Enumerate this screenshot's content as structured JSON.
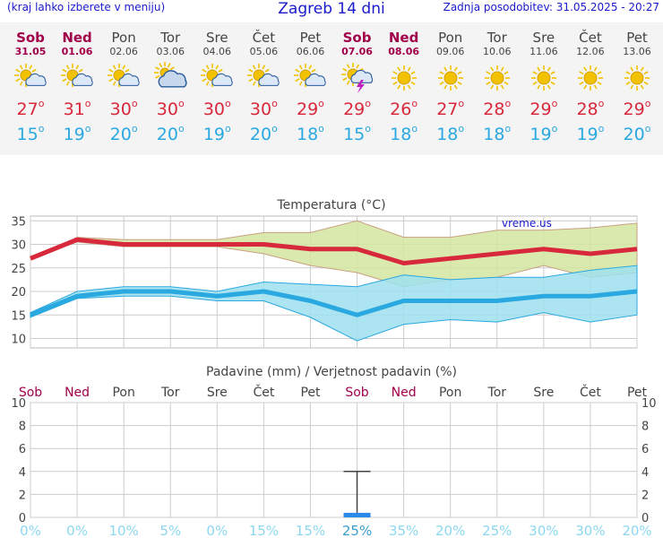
{
  "header": {
    "left_note": "(kraj lahko izberete v meniju)",
    "title": "Zagreb 14 dni",
    "updated": "Zadnja posodobitev: 31.05.2025 - 20:27"
  },
  "days": [
    {
      "name": "Sob",
      "date": "31.05",
      "weekend": true,
      "icon": "sun-cloud-icon",
      "hi": "27",
      "lo": "15"
    },
    {
      "name": "Ned",
      "date": "01.06",
      "weekend": true,
      "icon": "sun-cloud-icon",
      "hi": "31",
      "lo": "19"
    },
    {
      "name": "Pon",
      "date": "02.06",
      "weekend": false,
      "icon": "sun-cloud-icon",
      "hi": "30",
      "lo": "20"
    },
    {
      "name": "Tor",
      "date": "03.06",
      "weekend": false,
      "icon": "cloudy-icon",
      "hi": "30",
      "lo": "20"
    },
    {
      "name": "Sre",
      "date": "04.06",
      "weekend": false,
      "icon": "sun-cloud-icon",
      "hi": "30",
      "lo": "19"
    },
    {
      "name": "Čet",
      "date": "05.06",
      "weekend": false,
      "icon": "sun-cloud-icon",
      "hi": "30",
      "lo": "20"
    },
    {
      "name": "Pet",
      "date": "06.06",
      "weekend": false,
      "icon": "sun-cloud-icon",
      "hi": "29",
      "lo": "18"
    },
    {
      "name": "Sob",
      "date": "07.06",
      "weekend": true,
      "icon": "thunderstorm-icon",
      "hi": "29",
      "lo": "15"
    },
    {
      "name": "Ned",
      "date": "08.06",
      "weekend": true,
      "icon": "sun-icon",
      "hi": "26",
      "lo": "18"
    },
    {
      "name": "Pon",
      "date": "09.06",
      "weekend": false,
      "icon": "sun-icon",
      "hi": "27",
      "lo": "18"
    },
    {
      "name": "Tor",
      "date": "10.06",
      "weekend": false,
      "icon": "sun-icon",
      "hi": "28",
      "lo": "18"
    },
    {
      "name": "Sre",
      "date": "11.06",
      "weekend": false,
      "icon": "sun-icon",
      "hi": "29",
      "lo": "19"
    },
    {
      "name": "Čet",
      "date": "12.06",
      "weekend": false,
      "icon": "sun-icon",
      "hi": "28",
      "lo": "19"
    },
    {
      "name": "Pet",
      "date": "13.06",
      "weekend": false,
      "icon": "sun-icon",
      "hi": "29",
      "lo": "20"
    }
  ],
  "colors": {
    "weekend": "#a0004a",
    "weekday": "#444444",
    "max_line": "#d8283c",
    "min_line": "#2aa8e0",
    "max_band": "#d4e6a0",
    "min_band": "#9ee0ee",
    "precip_bar": "#2a8ae8",
    "precip_prob": "#8cd8f0",
    "sun": "#f2c200",
    "cloud": "#6aa0d8"
  },
  "chart_data": [
    {
      "type": "line",
      "title": "Temperatura (°C)",
      "watermark": "vreme.us",
      "categories": [
        "Sob",
        "Ned",
        "Pon",
        "Tor",
        "Sre",
        "Čet",
        "Pet",
        "Sob",
        "Ned",
        "Pon",
        "Tor",
        "Sre",
        "Čet",
        "Pet"
      ],
      "ylim": [
        8,
        36
      ],
      "yticks": [
        10,
        15,
        20,
        25,
        30,
        35
      ],
      "grid": true,
      "series": [
        {
          "name": "max",
          "values": [
            27,
            31,
            30,
            30,
            30,
            30,
            29,
            29,
            26,
            27,
            28,
            29,
            28,
            29
          ]
        },
        {
          "name": "max band upper",
          "values": [
            27,
            31.5,
            31,
            31,
            31,
            32.5,
            32.5,
            35,
            31.5,
            31.5,
            33,
            33,
            33.5,
            34.5
          ]
        },
        {
          "name": "max band lower",
          "values": [
            27,
            30.5,
            29.5,
            29.5,
            29.5,
            28,
            25.5,
            24,
            21,
            22.5,
            23,
            25.5,
            23,
            24
          ]
        },
        {
          "name": "min",
          "values": [
            15,
            19,
            20,
            20,
            19,
            20,
            18,
            15,
            18,
            18,
            18,
            19,
            19,
            20
          ]
        },
        {
          "name": "min band upper",
          "values": [
            15.5,
            20,
            21,
            21,
            20,
            22,
            21.5,
            21,
            23.5,
            22.5,
            23,
            23,
            24.5,
            25.5
          ]
        },
        {
          "name": "min band lower",
          "values": [
            14.5,
            18.5,
            19,
            19,
            18,
            18,
            14.5,
            9.5,
            13,
            14,
            13.5,
            15.5,
            13.5,
            15
          ]
        }
      ]
    },
    {
      "type": "bar",
      "title": "Padavine (mm) / Verjetnost padavin (%)",
      "categories": [
        "Sob",
        "Ned",
        "Pon",
        "Tor",
        "Sre",
        "Čet",
        "Pet",
        "Sob",
        "Ned",
        "Pon",
        "Tor",
        "Sre",
        "Čet",
        "Pet"
      ],
      "weekend": [
        true,
        true,
        false,
        false,
        false,
        false,
        false,
        true,
        true,
        false,
        false,
        false,
        false,
        false
      ],
      "ylim": [
        0,
        10
      ],
      "yticks": [
        0,
        2,
        4,
        6,
        8,
        10
      ],
      "values": [
        0,
        0,
        0,
        0,
        0,
        0,
        0,
        0.4,
        0,
        0,
        0,
        0,
        0,
        0
      ],
      "error_max": [
        null,
        null,
        null,
        null,
        null,
        null,
        null,
        4,
        null,
        null,
        null,
        null,
        null,
        null
      ],
      "probability": [
        "0%",
        "0%",
        "10%",
        "5%",
        "0%",
        "15%",
        "15%",
        "25%",
        "35%",
        "20%",
        "25%",
        "30%",
        "30%",
        "20%"
      ]
    }
  ]
}
